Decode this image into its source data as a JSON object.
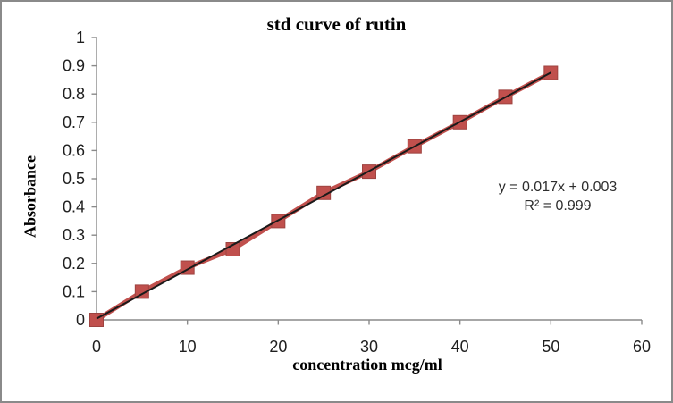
{
  "chart_data": {
    "type": "scatter",
    "title": "std curve of rutin",
    "xlabel": "concentration mcg/ml",
    "ylabel": "Absorbance",
    "x": [
      0,
      5,
      10,
      15,
      20,
      25,
      30,
      35,
      40,
      45,
      50
    ],
    "y": [
      0,
      0.1,
      0.185,
      0.25,
      0.35,
      0.45,
      0.525,
      0.615,
      0.7,
      0.79,
      0.875
    ],
    "xlim": [
      0,
      60
    ],
    "ylim": [
      0,
      1
    ],
    "x_ticks": [
      0,
      10,
      20,
      30,
      40,
      50,
      60
    ],
    "x_tick_labels": [
      "0",
      "10",
      "20",
      "30",
      "40",
      "50",
      "60"
    ],
    "y_ticks": [
      0,
      0.1,
      0.2,
      0.3,
      0.4,
      0.5,
      0.6,
      0.7,
      0.8,
      0.9,
      1
    ],
    "y_tick_labels": [
      "0",
      "0.1",
      "0.2",
      "0.3",
      "0.4",
      "0.5",
      "0.6",
      "0.7",
      "0.8",
      "0.9",
      "1"
    ],
    "grid": false,
    "legend": "none",
    "marker": "square",
    "trendline": {
      "equation": "y = 0.017x + 0.003",
      "r2_label": "R² = 0.999"
    },
    "colors": {
      "series": "#C0504D",
      "marker_edge": "#9e4340",
      "trendline": "#1a1a1a",
      "axis": "#8a8a8a",
      "tick_text": "#1f1f1f",
      "annotation_text": "#2e2e2e",
      "frame_border": "#8a8a8a"
    }
  }
}
